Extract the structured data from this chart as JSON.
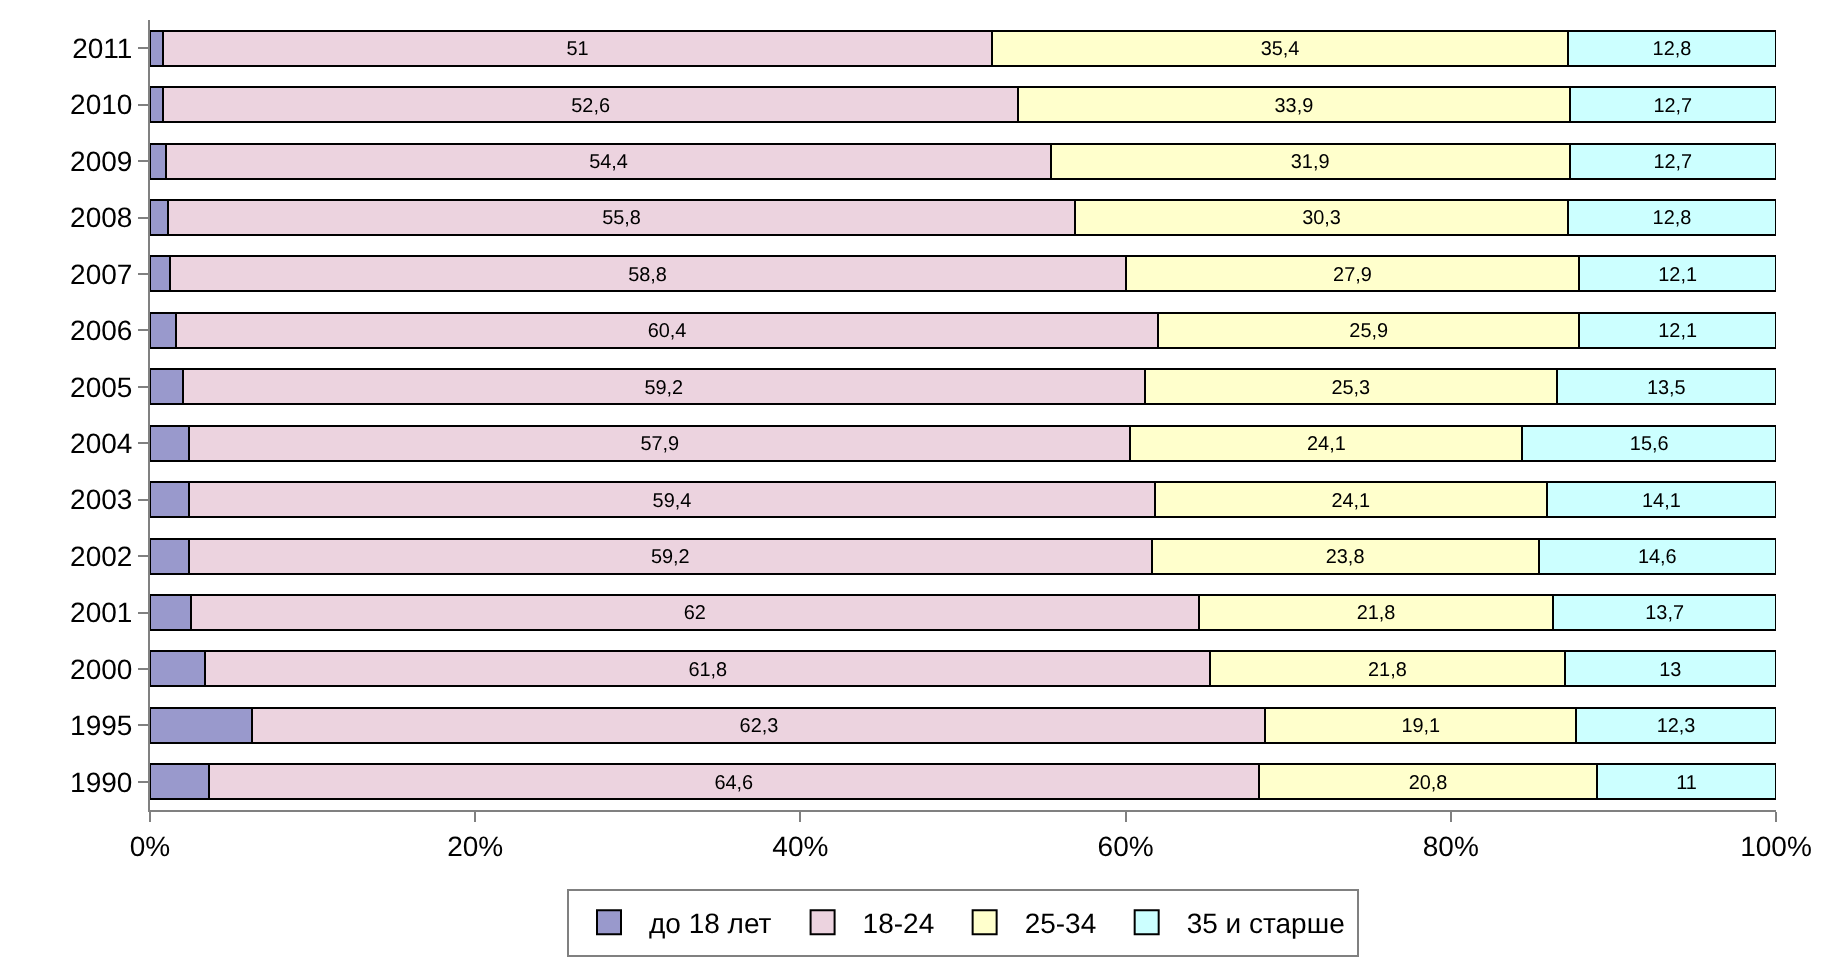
{
  "chart_data": {
    "type": "bar",
    "orientation": "horizontal",
    "stacked": true,
    "categories": [
      "2011",
      "2010",
      "2009",
      "2008",
      "2007",
      "2006",
      "2005",
      "2004",
      "2003",
      "2002",
      "2001",
      "2000",
      "1995",
      "1990"
    ],
    "series": [
      {
        "name": "до 18 лет",
        "color": "#9999cc",
        "values": [
          0.8,
          0.8,
          1.0,
          1.1,
          1.2,
          1.6,
          2.0,
          2.4,
          2.4,
          2.4,
          2.5,
          3.4,
          6.3,
          3.6
        ]
      },
      {
        "name": "18-24",
        "color": "#ecd3df",
        "values": [
          51,
          52.6,
          54.4,
          55.8,
          58.8,
          60.4,
          59.2,
          57.9,
          59.4,
          59.2,
          62,
          61.8,
          62.3,
          64.6
        ],
        "value_labels": [
          "51",
          "52,6",
          "54,4",
          "55,8",
          "58,8",
          "60,4",
          "59,2",
          "57,9",
          "59,4",
          "59,2",
          "62",
          "61,8",
          "62,3",
          "64,6"
        ]
      },
      {
        "name": "25-34",
        "color": "#ffffcc",
        "values": [
          35.4,
          33.9,
          31.9,
          30.3,
          27.9,
          25.9,
          25.3,
          24.1,
          24.1,
          23.8,
          21.8,
          21.8,
          19.1,
          20.8
        ],
        "value_labels": [
          "35,4",
          "33,9",
          "31,9",
          "30,3",
          "27,9",
          "25,9",
          "25,3",
          "24,1",
          "24,1",
          "23,8",
          "21,8",
          "21,8",
          "19,1",
          "20,8"
        ]
      },
      {
        "name": "35 и старше",
        "color": "#ccffff",
        "values": [
          12.8,
          12.7,
          12.7,
          12.8,
          12.1,
          12.1,
          13.5,
          15.6,
          14.1,
          14.6,
          13.7,
          13,
          12.3,
          11
        ],
        "value_labels": [
          "12,8",
          "12,7",
          "12,7",
          "12,8",
          "12,1",
          "12,1",
          "13,5",
          "15,6",
          "14,1",
          "14,6",
          "13,7",
          "13",
          "12,3",
          "11"
        ]
      }
    ],
    "xlim": [
      0,
      100
    ],
    "xticks": [
      {
        "value": 0,
        "label": "0%"
      },
      {
        "value": 20,
        "label": "20%"
      },
      {
        "value": 40,
        "label": "40%"
      },
      {
        "value": 60,
        "label": "60%"
      },
      {
        "value": 80,
        "label": "80%"
      },
      {
        "value": 100,
        "label": "100%"
      }
    ],
    "legend": "bottom"
  }
}
